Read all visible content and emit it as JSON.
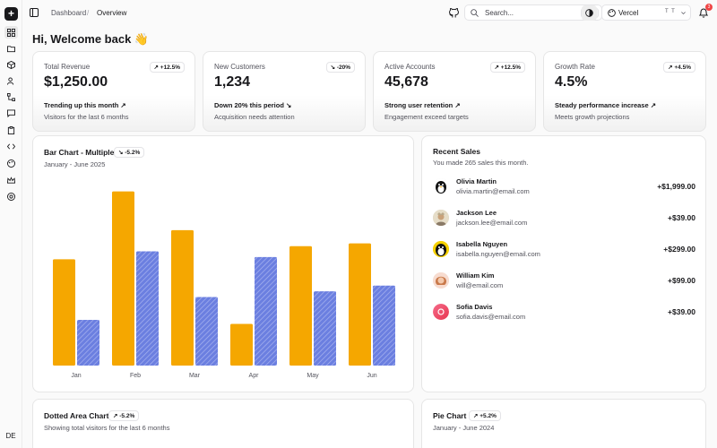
{
  "sidebar": {
    "new_label": "+",
    "items": [
      {
        "icon": "dashboard-icon",
        "active": true
      },
      {
        "icon": "folder-icon",
        "active": false
      },
      {
        "icon": "box-icon",
        "active": false
      },
      {
        "icon": "users-icon",
        "active": false
      },
      {
        "icon": "workflow-icon",
        "active": false
      },
      {
        "icon": "message-icon",
        "active": false
      },
      {
        "icon": "clipboard-icon",
        "active": false
      },
      {
        "icon": "code-icon",
        "active": false
      },
      {
        "icon": "palette-icon",
        "active": false
      },
      {
        "icon": "crown-icon",
        "active": false
      },
      {
        "icon": "globe-icon",
        "active": false
      }
    ],
    "user_initials": "DE"
  },
  "header": {
    "breadcrumb": [
      "Dashboard",
      "Overview"
    ],
    "search_placeholder": "Search...",
    "search_kbd": "⌘ K",
    "team_name": "Vercel",
    "team_kbd": "T T",
    "notification_count": "3"
  },
  "welcome": "Hi, Welcome back 👋",
  "stats": [
    {
      "label": "Total Revenue",
      "badge": "↗ +12.5%",
      "value": "$1,250.00",
      "trend": "Trending up this month ↗",
      "sub": "Visitors for the last 6 months"
    },
    {
      "label": "New Customers",
      "badge": "↘ -20%",
      "value": "1,234",
      "trend": "Down 20% this period ↘",
      "sub": "Acquisition needs attention"
    },
    {
      "label": "Active Accounts",
      "badge": "↗ +12.5%",
      "value": "45,678",
      "trend": "Strong user retention ↗",
      "sub": "Engagement exceed targets"
    },
    {
      "label": "Growth Rate",
      "badge": "↗ +4.5%",
      "value": "4.5%",
      "trend": "Steady performance increase ↗",
      "sub": "Meets growth projections"
    }
  ],
  "bar_card": {
    "title": "Bar Chart - Multiple",
    "badge": "↘ -5.2%",
    "subtitle": "January - June 2025"
  },
  "chart_data": {
    "type": "bar",
    "categories": [
      "Jan",
      "Feb",
      "Mar",
      "Apr",
      "May",
      "Jun"
    ],
    "series": [
      {
        "values": [
          186,
          305,
          237,
          73,
          209,
          214
        ],
        "color": "#f5a700"
      },
      {
        "values": [
          80,
          200,
          120,
          190,
          130,
          140
        ],
        "color": "#6b7fe0",
        "pattern": "diagonal-hatch"
      }
    ],
    "ylim": [
      0,
      320
    ],
    "grid": false
  },
  "sales": {
    "title": "Recent Sales",
    "subtitle": "You made 265 sales this month.",
    "items": [
      {
        "name": "Olivia Martin",
        "email": "olivia.martin@email.com",
        "amount": "+$1,999.00",
        "avatar": "penguin-icon"
      },
      {
        "name": "Jackson Lee",
        "email": "jackson.lee@email.com",
        "amount": "+$39.00",
        "avatar": "person-icon"
      },
      {
        "name": "Isabella Nguyen",
        "email": "isabella.nguyen@email.com",
        "amount": "+$299.00",
        "avatar": "penguin-icon"
      },
      {
        "name": "William Kim",
        "email": "will@email.com",
        "amount": "+$99.00",
        "avatar": "person-icon"
      },
      {
        "name": "Sofia Davis",
        "email": "sofia.davis@email.com",
        "amount": "+$39.00",
        "avatar": "logo-icon"
      }
    ]
  },
  "area_card": {
    "title": "Dotted Area Chart",
    "badge": "↗ -5.2%",
    "subtitle": "Showing total visitors for the last 6 months"
  },
  "pie_card": {
    "title": "Pie Chart",
    "badge": "↗ +5.2%",
    "subtitle": "January - June 2024"
  },
  "colors": {
    "bar_primary": "#f5a700",
    "bar_secondary": "#6b7fe0",
    "badge_red": "#ef4444"
  }
}
